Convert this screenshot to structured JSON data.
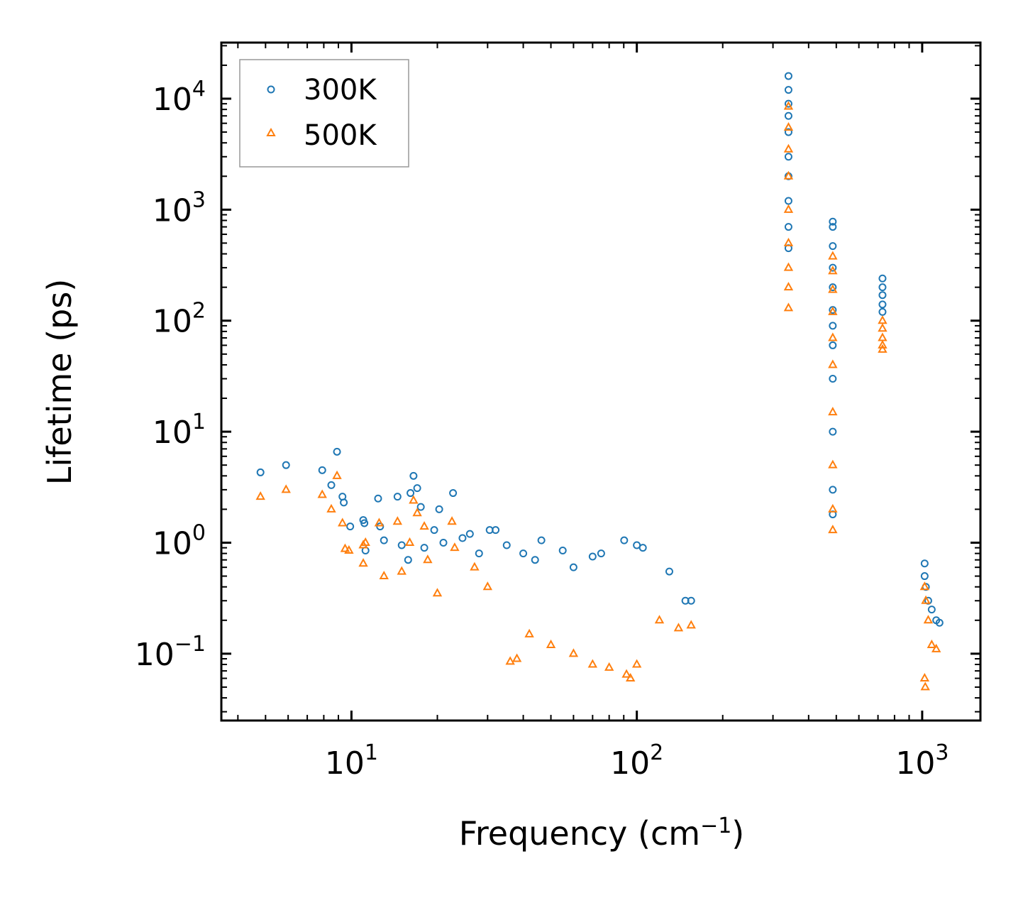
{
  "chart_data": {
    "type": "scatter",
    "title": "",
    "xlabel": "Frequency (cm",
    "xlabel_sup": "−1",
    "xlabel_close": ")",
    "ylabel": "Lifetime (ps)",
    "xscale": "log",
    "yscale": "log",
    "xlim": [
      3.5,
      1600
    ],
    "ylim": [
      0.025,
      32000
    ],
    "x_ticks": [
      {
        "base": "10",
        "exp": "1",
        "value": 10
      },
      {
        "base": "10",
        "exp": "2",
        "value": 100
      },
      {
        "base": "10",
        "exp": "3",
        "value": 1000
      }
    ],
    "y_ticks": [
      {
        "base": "10",
        "exp": "−1",
        "value": 0.1
      },
      {
        "base": "10",
        "exp": "0",
        "value": 1
      },
      {
        "base": "10",
        "exp": "1",
        "value": 10
      },
      {
        "base": "10",
        "exp": "2",
        "value": 100
      },
      {
        "base": "10",
        "exp": "3",
        "value": 1000
      },
      {
        "base": "10",
        "exp": "4",
        "value": 10000
      }
    ],
    "legend_position": "top-left",
    "series": [
      {
        "name": "300K",
        "marker": "circle",
        "color": "#1f77b4",
        "points": [
          [
            4.8,
            4.3
          ],
          [
            5.9,
            5.0
          ],
          [
            7.9,
            4.5
          ],
          [
            8.5,
            3.3
          ],
          [
            8.9,
            6.6
          ],
          [
            9.3,
            2.6
          ],
          [
            9.4,
            2.3
          ],
          [
            9.9,
            1.4
          ],
          [
            11.0,
            1.6
          ],
          [
            11.1,
            1.5
          ],
          [
            11.2,
            0.85
          ],
          [
            12.4,
            2.5
          ],
          [
            12.6,
            1.4
          ],
          [
            13.0,
            1.05
          ],
          [
            14.5,
            2.6
          ],
          [
            15.0,
            0.95
          ],
          [
            15.8,
            0.7
          ],
          [
            16.1,
            2.8
          ],
          [
            16.5,
            4.0
          ],
          [
            17.0,
            3.1
          ],
          [
            17.5,
            2.1
          ],
          [
            18.0,
            0.9
          ],
          [
            19.5,
            1.3
          ],
          [
            20.3,
            2.0
          ],
          [
            21.0,
            1.0
          ],
          [
            22.7,
            2.8
          ],
          [
            24.5,
            1.1
          ],
          [
            26.0,
            1.2
          ],
          [
            28.0,
            0.8
          ],
          [
            30.5,
            1.3
          ],
          [
            32.0,
            1.3
          ],
          [
            35.0,
            0.95
          ],
          [
            40.0,
            0.8
          ],
          [
            44.0,
            0.7
          ],
          [
            46.3,
            1.05
          ],
          [
            55.0,
            0.85
          ],
          [
            60.0,
            0.6
          ],
          [
            70.0,
            0.75
          ],
          [
            75.0,
            0.8
          ],
          [
            90.3,
            1.05
          ],
          [
            100.0,
            0.95
          ],
          [
            105.0,
            0.9
          ],
          [
            130.0,
            0.55
          ],
          [
            148.0,
            0.3
          ],
          [
            155.0,
            0.3
          ],
          [
            340,
            16000
          ],
          [
            340,
            12000
          ],
          [
            340,
            9000
          ],
          [
            340,
            7000
          ],
          [
            340,
            5000
          ],
          [
            340,
            3000
          ],
          [
            340,
            2000
          ],
          [
            340,
            1200
          ],
          [
            340,
            700
          ],
          [
            340,
            450
          ],
          [
            486,
            780
          ],
          [
            486,
            700
          ],
          [
            486,
            470
          ],
          [
            486,
            300
          ],
          [
            486,
            200
          ],
          [
            486,
            125
          ],
          [
            486,
            90
          ],
          [
            486,
            60
          ],
          [
            486,
            30
          ],
          [
            486,
            10
          ],
          [
            486,
            3
          ],
          [
            486,
            1.8
          ],
          [
            726,
            240
          ],
          [
            726,
            200
          ],
          [
            726,
            170
          ],
          [
            726,
            140
          ],
          [
            726,
            120
          ],
          [
            1020,
            0.65
          ],
          [
            1020,
            0.5
          ],
          [
            1030,
            0.4
          ],
          [
            1050,
            0.3
          ],
          [
            1080,
            0.25
          ],
          [
            1120,
            0.2
          ],
          [
            1150,
            0.19
          ]
        ]
      },
      {
        "name": "500K",
        "marker": "triangle",
        "color": "#ff7f0e",
        "points": [
          [
            4.8,
            2.6
          ],
          [
            5.9,
            3.0
          ],
          [
            7.9,
            2.7
          ],
          [
            8.5,
            2.0
          ],
          [
            8.9,
            4.0
          ],
          [
            9.3,
            1.5
          ],
          [
            9.5,
            0.88
          ],
          [
            9.8,
            0.85
          ],
          [
            11.0,
            0.95
          ],
          [
            11.2,
            1.0
          ],
          [
            11.0,
            0.65
          ],
          [
            12.5,
            1.5
          ],
          [
            13.0,
            0.5
          ],
          [
            14.5,
            1.55
          ],
          [
            15.0,
            0.55
          ],
          [
            16.0,
            1.0
          ],
          [
            16.5,
            2.4
          ],
          [
            17.0,
            1.85
          ],
          [
            18.0,
            1.4
          ],
          [
            18.5,
            0.7
          ],
          [
            20.0,
            0.35
          ],
          [
            22.5,
            1.55
          ],
          [
            23.0,
            0.9
          ],
          [
            27.0,
            0.6
          ],
          [
            30.0,
            0.4
          ],
          [
            36.0,
            0.085
          ],
          [
            38.0,
            0.09
          ],
          [
            42.0,
            0.15
          ],
          [
            50.0,
            0.12
          ],
          [
            60.0,
            0.1
          ],
          [
            70.0,
            0.08
          ],
          [
            80.0,
            0.075
          ],
          [
            92.0,
            0.065
          ],
          [
            95.0,
            0.06
          ],
          [
            100.0,
            0.08
          ],
          [
            120.0,
            0.2
          ],
          [
            140.0,
            0.17
          ],
          [
            155.0,
            0.18
          ],
          [
            340,
            8500
          ],
          [
            340,
            5500
          ],
          [
            340,
            3500
          ],
          [
            340,
            2000
          ],
          [
            340,
            1000
          ],
          [
            340,
            500
          ],
          [
            340,
            300
          ],
          [
            340,
            200
          ],
          [
            340,
            130
          ],
          [
            486,
            380
          ],
          [
            486,
            280
          ],
          [
            486,
            190
          ],
          [
            486,
            120
          ],
          [
            486,
            70
          ],
          [
            486,
            40
          ],
          [
            486,
            15
          ],
          [
            486,
            5
          ],
          [
            486,
            2
          ],
          [
            486,
            1.3
          ],
          [
            726,
            100
          ],
          [
            726,
            85
          ],
          [
            726,
            70
          ],
          [
            726,
            60
          ],
          [
            726,
            55
          ],
          [
            1020,
            0.4
          ],
          [
            1030,
            0.3
          ],
          [
            1050,
            0.2
          ],
          [
            1080,
            0.12
          ],
          [
            1120,
            0.11
          ],
          [
            1020,
            0.06
          ],
          [
            1025,
            0.05
          ]
        ]
      }
    ]
  }
}
